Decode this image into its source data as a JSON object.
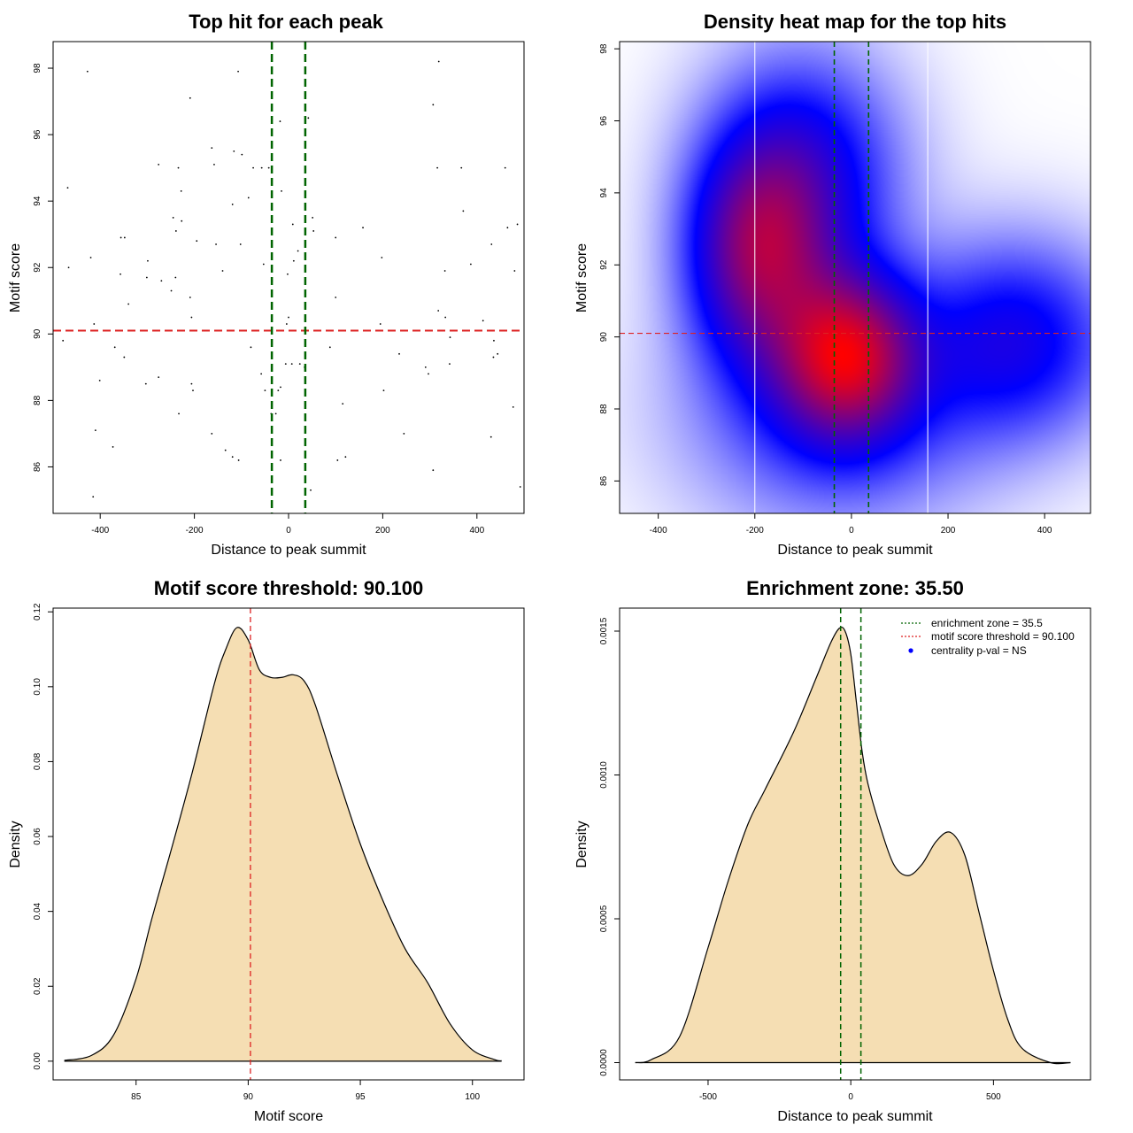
{
  "chart_data": [
    {
      "id": "scatter",
      "type": "scatter",
      "title": "Top hit for each peak",
      "xlabel": "Distance to peak summit",
      "ylabel": "Motif score",
      "xlim": [
        -500,
        500
      ],
      "ylim": [
        84.6,
        98.8
      ],
      "xticks": [
        "-400",
        "-200",
        "0",
        "200",
        "400"
      ],
      "yticks": [
        "86",
        "88",
        "90",
        "92",
        "94",
        "96",
        "98"
      ],
      "threshold": 90.1,
      "zone": [
        -35.5,
        35.5
      ],
      "colors": {
        "points": "#000000",
        "threshold": "#dd2222",
        "zone": "#006400"
      },
      "points": [
        [
          -427,
          97.9
        ],
        [
          -209,
          97.1
        ],
        [
          -107,
          97.9
        ],
        [
          -99,
          95.4
        ],
        [
          -163,
          95.6
        ],
        [
          -158,
          95.1
        ],
        [
          -116,
          95.5
        ],
        [
          -276,
          95.1
        ],
        [
          -234,
          95.0
        ],
        [
          -75,
          95.0
        ],
        [
          -57,
          95.0
        ],
        [
          -42,
          95.0
        ],
        [
          -18,
          96.4
        ],
        [
          42,
          96.5
        ],
        [
          307,
          96.9
        ],
        [
          319,
          98.2
        ],
        [
          316,
          95.0
        ],
        [
          367,
          95.0
        ],
        [
          460,
          95.0
        ],
        [
          -469,
          94.4
        ],
        [
          -228,
          94.3
        ],
        [
          -85,
          94.1
        ],
        [
          -119,
          93.9
        ],
        [
          -15,
          94.3
        ],
        [
          -245,
          93.5
        ],
        [
          -227,
          93.4
        ],
        [
          -239,
          93.1
        ],
        [
          -154,
          92.7
        ],
        [
          -195,
          92.8
        ],
        [
          -102,
          92.7
        ],
        [
          9,
          93.3
        ],
        [
          51,
          93.5
        ],
        [
          53,
          93.1
        ],
        [
          100,
          92.9
        ],
        [
          158,
          93.2
        ],
        [
          371,
          93.7
        ],
        [
          465,
          93.2
        ],
        [
          486,
          93.3
        ],
        [
          -356,
          92.9
        ],
        [
          -348,
          92.9
        ],
        [
          -420,
          92.3
        ],
        [
          -467,
          92.0
        ],
        [
          -299,
          92.2
        ],
        [
          -357,
          91.8
        ],
        [
          -301,
          91.7
        ],
        [
          -270,
          91.6
        ],
        [
          -249,
          91.3
        ],
        [
          -240,
          91.7
        ],
        [
          -209,
          91.1
        ],
        [
          -140,
          91.9
        ],
        [
          -53,
          92.1
        ],
        [
          -35,
          91.6
        ],
        [
          -2,
          91.8
        ],
        [
          11,
          92.2
        ],
        [
          20,
          92.5
        ],
        [
          100,
          91.1
        ],
        [
          198,
          92.3
        ],
        [
          332,
          91.9
        ],
        [
          387,
          92.1
        ],
        [
          431,
          92.7
        ],
        [
          480,
          91.9
        ],
        [
          -340,
          90.9
        ],
        [
          -206,
          90.5
        ],
        [
          -413,
          90.3
        ],
        [
          0,
          90.5
        ],
        [
          -4,
          90.3
        ],
        [
          -479,
          89.8
        ],
        [
          -369,
          89.6
        ],
        [
          -349,
          89.3
        ],
        [
          -80,
          89.6
        ],
        [
          88,
          89.6
        ],
        [
          195,
          90.3
        ],
        [
          235,
          89.4
        ],
        [
          318,
          90.7
        ],
        [
          333,
          90.5
        ],
        [
          413,
          90.4
        ],
        [
          436,
          89.8
        ],
        [
          343,
          89.9
        ],
        [
          435,
          89.3
        ],
        [
          342,
          89.1
        ],
        [
          444,
          89.4
        ],
        [
          -401,
          88.6
        ],
        [
          -303,
          88.5
        ],
        [
          -276,
          88.7
        ],
        [
          -206,
          88.5
        ],
        [
          -203,
          88.3
        ],
        [
          -58,
          88.8
        ],
        [
          -50,
          88.3
        ],
        [
          -22,
          88.3
        ],
        [
          -17,
          88.4
        ],
        [
          -6,
          89.1
        ],
        [
          7,
          89.1
        ],
        [
          24,
          89.1
        ],
        [
          34,
          89.0
        ],
        [
          291,
          89.0
        ],
        [
          297,
          88.8
        ],
        [
          202,
          88.3
        ],
        [
          -233,
          87.6
        ],
        [
          -37,
          87.6
        ],
        [
          -27,
          87.6
        ],
        [
          -163,
          87.0
        ],
        [
          -410,
          87.1
        ],
        [
          115,
          87.9
        ],
        [
          245,
          87.0
        ],
        [
          477,
          87.8
        ],
        [
          -373,
          86.6
        ],
        [
          -134,
          86.5
        ],
        [
          -119,
          86.3
        ],
        [
          -106,
          86.2
        ],
        [
          -17,
          86.2
        ],
        [
          104,
          86.2
        ],
        [
          121,
          86.3
        ],
        [
          307,
          85.9
        ],
        [
          430,
          86.9
        ],
        [
          -415,
          85.1
        ],
        [
          47,
          85.3
        ],
        [
          492,
          85.4
        ]
      ]
    },
    {
      "id": "heatmap",
      "type": "heatmap",
      "title": "Density heat map for the top hits",
      "xlabel": "Distance to peak summit",
      "ylabel": "Motif score",
      "xlim": [
        -480,
        495
      ],
      "ylim": [
        85.1,
        98.2
      ],
      "xticks": [
        "-400",
        "-200",
        "0",
        "200",
        "400"
      ],
      "yticks": [
        "86",
        "88",
        "90",
        "92",
        "94",
        "96",
        "98"
      ],
      "threshold": 90.1,
      "zone": [
        -35.5,
        35.5
      ],
      "quantile_lines": [
        -200,
        158
      ],
      "colors": {
        "low": "#ffffff",
        "mid": "#0000ff",
        "high": "#ff0000",
        "threshold": "#dd2222",
        "zone": "#006400"
      },
      "blobs": [
        {
          "x": -10,
          "y": 89.5,
          "sx": 95,
          "sy": 1.5,
          "w": 1.0
        },
        {
          "x": -190,
          "y": 92.3,
          "sx": 95,
          "sy": 2.0,
          "w": 0.78
        },
        {
          "x": -100,
          "y": 94.5,
          "sx": 130,
          "sy": 2.2,
          "w": 0.45
        },
        {
          "x": 340,
          "y": 89.9,
          "sx": 140,
          "sy": 1.8,
          "w": 0.42
        },
        {
          "x": -30,
          "y": 88.0,
          "sx": 200,
          "sy": 2.2,
          "w": 0.3
        }
      ]
    },
    {
      "id": "score-density",
      "type": "area",
      "title": "Motif score threshold: 90.100",
      "xlabel": "Motif score",
      "ylabel": "Density",
      "xlim": [
        81.3,
        102.3
      ],
      "ylim": [
        -0.005,
        0.121
      ],
      "xticks": [
        "85",
        "90",
        "95",
        "100"
      ],
      "yticks": [
        "0.00",
        "0.02",
        "0.04",
        "0.06",
        "0.08",
        "0.10",
        "0.12"
      ],
      "threshold": 90.1,
      "colors": {
        "fill": "#f5deb3",
        "line": "#000000",
        "threshold": "#dd2222"
      },
      "x": [
        81.8,
        83,
        84,
        85,
        85.7,
        86.5,
        87.5,
        88.5,
        89,
        89.5,
        90,
        90.5,
        91,
        91.5,
        92,
        92.5,
        93,
        94,
        95,
        96,
        97,
        98,
        99,
        100,
        101,
        101.3
      ],
      "y": [
        0.0002,
        0.0015,
        0.007,
        0.022,
        0.038,
        0.055,
        0.077,
        0.101,
        0.11,
        0.1158,
        0.1125,
        0.1045,
        0.1025,
        0.1025,
        0.1032,
        0.1015,
        0.095,
        0.076,
        0.058,
        0.043,
        0.03,
        0.021,
        0.01,
        0.003,
        0.0004,
        0.0001
      ]
    },
    {
      "id": "distance-density",
      "type": "area",
      "title": "Enrichment zone: 35.50",
      "xlabel": "Distance to peak summit",
      "ylabel": "Density",
      "xlim": [
        -810,
        840
      ],
      "ylim": [
        -6e-05,
        0.00158
      ],
      "xticks": [
        "-500",
        "0",
        "500"
      ],
      "yticks": [
        "0.0000",
        "0.0005",
        "0.0010",
        "0.0015"
      ],
      "zone": [
        -35.5,
        35.5
      ],
      "colors": {
        "fill": "#f5deb3",
        "line": "#000000",
        "zone": "#006400",
        "threshold": "#dd2222",
        "pval": "#0000ff"
      },
      "x": [
        -755,
        -700,
        -600,
        -500,
        -430,
        -360,
        -300,
        -200,
        -120,
        -70,
        -40,
        -20,
        0,
        20,
        40,
        60,
        100,
        150,
        200,
        250,
        300,
        350,
        400,
        450,
        500,
        550,
        600,
        700,
        770
      ],
      "y": [
        0.0,
        1e-05,
        9e-05,
        0.0004,
        0.00063,
        0.00083,
        0.00095,
        0.00115,
        0.00134,
        0.00146,
        0.00151,
        0.0015,
        0.00142,
        0.00125,
        0.00108,
        0.00097,
        0.00083,
        0.00069,
        0.00065,
        0.00069,
        0.00077,
        0.0008,
        0.00072,
        0.00052,
        0.00032,
        0.00015,
        5e-05,
        0.0,
        0.0
      ],
      "legend": [
        {
          "label": "enrichment zone = 35.5",
          "kind": "zone"
        },
        {
          "label": "motif score threshold = 90.100",
          "kind": "threshold"
        },
        {
          "label": "centrality p-val = NS",
          "kind": "pval"
        }
      ]
    }
  ]
}
